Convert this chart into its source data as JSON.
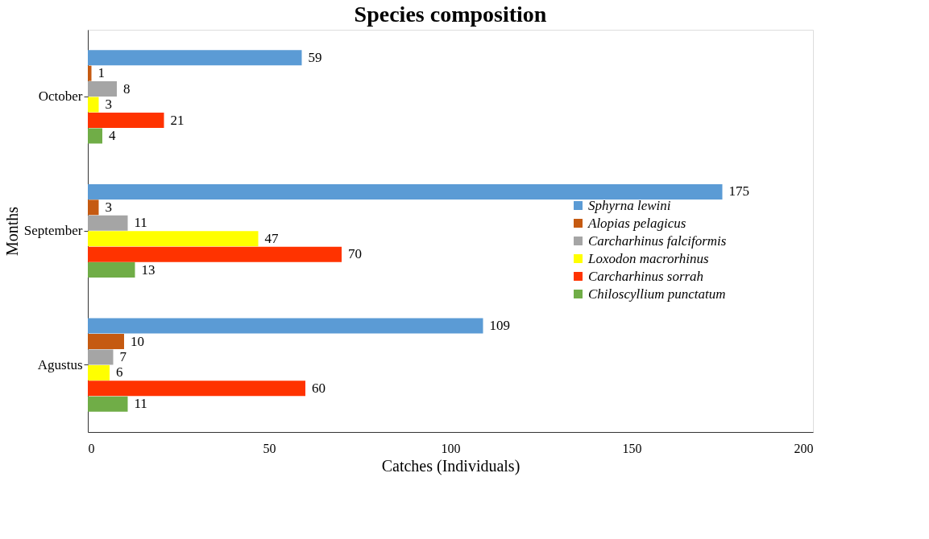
{
  "chart_data": {
    "type": "bar",
    "orientation": "horizontal",
    "title": "Species composition",
    "xlabel": "Catches (Individuals)",
    "ylabel": "Months",
    "categories": [
      "October",
      "September",
      "Agustus"
    ],
    "series": [
      {
        "name": "Sphyrna lewini",
        "color": "#5b9bd5",
        "values": [
          59,
          175,
          109
        ]
      },
      {
        "name": "Alopias pelagicus",
        "color": "#c55a11",
        "values": [
          1,
          3,
          10
        ]
      },
      {
        "name": "Carcharhinus falciformis",
        "color": "#a5a5a5",
        "values": [
          8,
          11,
          7
        ]
      },
      {
        "name": "Loxodon macrorhinus",
        "color": "#ffff00",
        "values": [
          3,
          47,
          6
        ]
      },
      {
        "name": "Carcharhinus sorrah",
        "color": "#ff3300",
        "values": [
          21,
          70,
          60
        ]
      },
      {
        "name": "Chiloscyllium punctatum",
        "color": "#70ad47",
        "values": [
          4,
          13,
          11
        ]
      }
    ],
    "xlim": [
      0,
      200
    ],
    "xticks": [
      0,
      50,
      100,
      150,
      200
    ],
    "grid": false,
    "legend": "right",
    "data_labels": true
  }
}
